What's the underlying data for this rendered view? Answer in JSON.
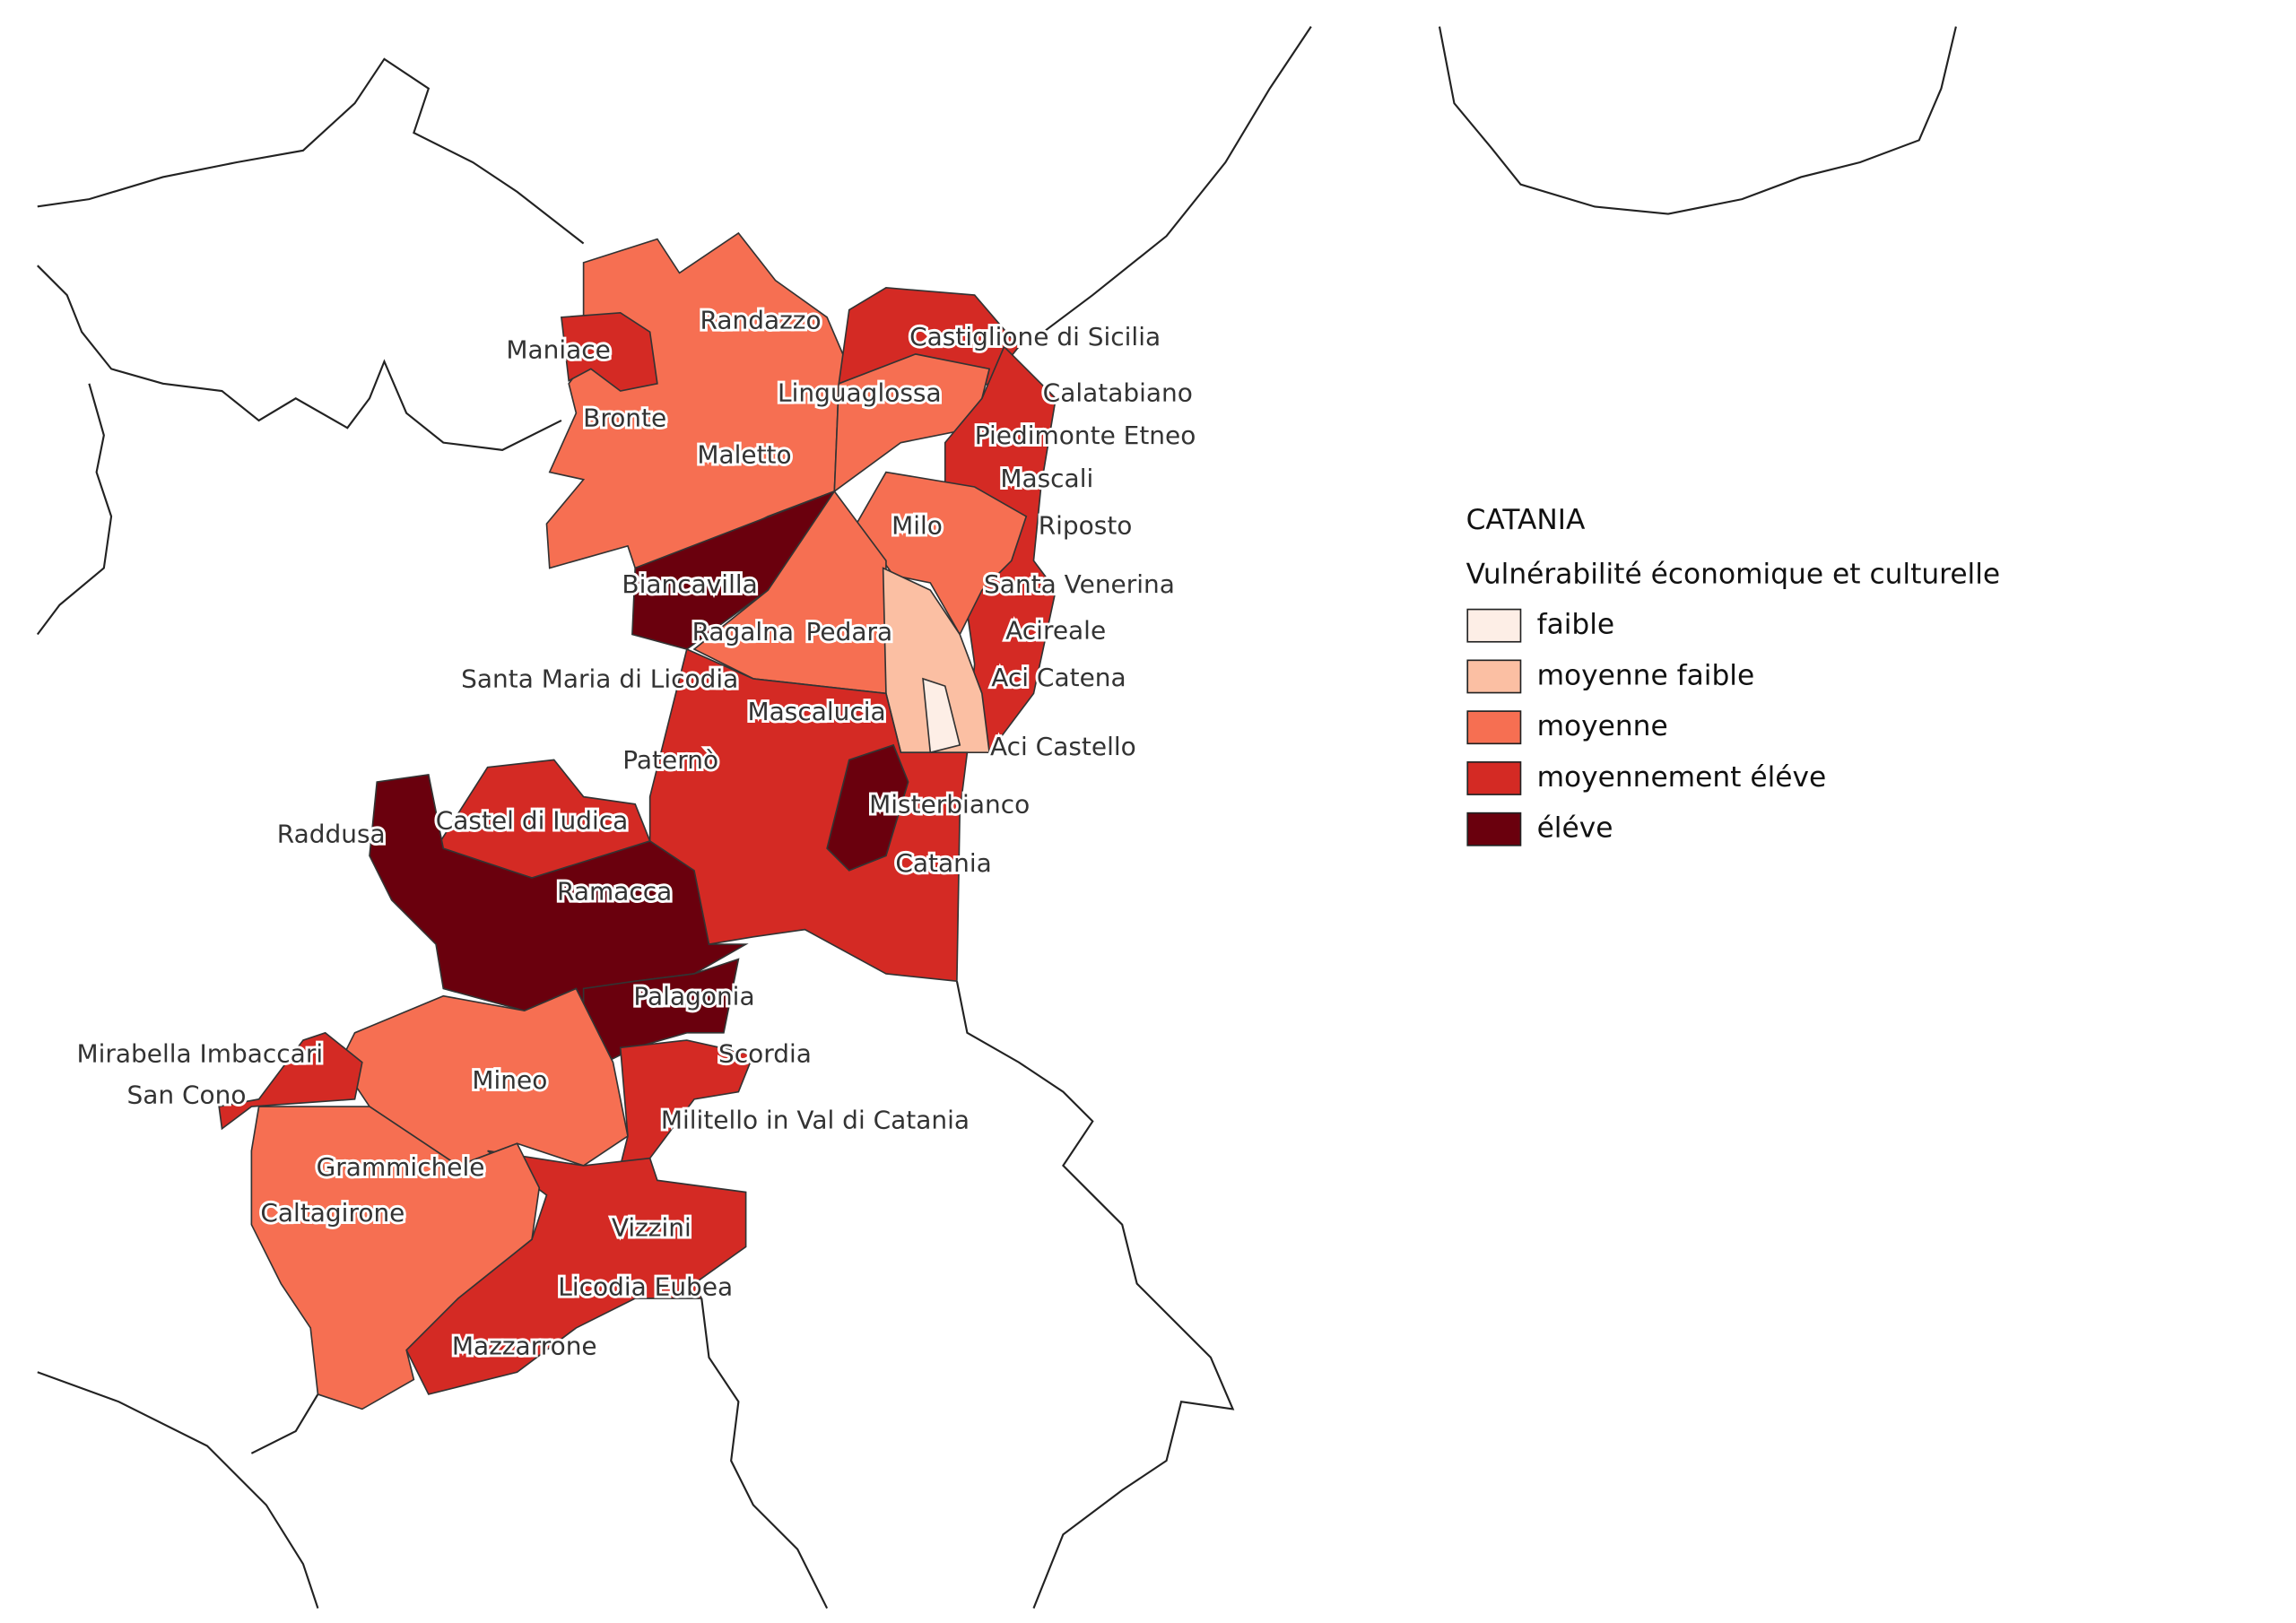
{
  "legend": {
    "title": "CATANIA",
    "subtitle": "Vulnérabilité économique et culturelle",
    "items": [
      {
        "label": "faible",
        "color": "#fdeee6"
      },
      {
        "label": "moyenne faible",
        "color": "#fbbfa3"
      },
      {
        "label": "moyenne",
        "color": "#f66f52"
      },
      {
        "label": "moyennement éléve",
        "color": "#d42a24"
      },
      {
        "label": "éléve",
        "color": "#6a000d"
      }
    ]
  },
  "labels": [
    "Randazzo",
    "Castiglione di Sicilia",
    "Maniace",
    "Calatabiano",
    "Linguaglossa",
    "Bronte",
    "Piedimonte Etneo",
    "Maletto",
    "Mascali",
    "Milo",
    "Riposto",
    "Biancavilla",
    "Santa Venerina",
    "Ragalna",
    "Pedara",
    "Acireale",
    "Santa Maria di Licodia",
    "Aci Catena",
    "Mascalucia",
    "Aci Castello",
    "Paternò",
    "Misterbianco",
    "Castel di Iudica",
    "Raddusa",
    "Catania",
    "Ramacca",
    "Palagonia",
    "Mirabella Imbaccari",
    "Scordia",
    "Mineo",
    "San Cono",
    "Militello in Val di Catania",
    "Grammichele",
    "Caltagirone",
    "Vizzini",
    "Licodia Eubea",
    "Mazzarrone"
  ]
}
